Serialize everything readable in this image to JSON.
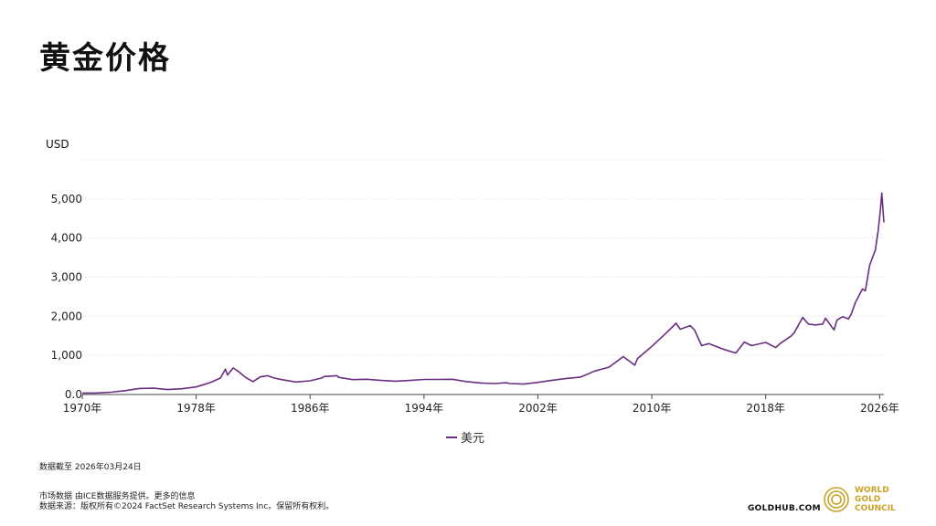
{
  "title": "黄金价格",
  "y_unit": "USD",
  "legend": {
    "label": "美元",
    "color": "#6b2d82"
  },
  "as_of": "数据截至 2026年03月24日",
  "source_line1": "市场数据 由ICE数据服务提供。更多的信息",
  "source_line2": "数据来源：版权所有©2024 FactSet Research Systems Inc。保留所有权利。",
  "site": "GOLDHUB.COM",
  "logo": {
    "line1": "WORLD",
    "line2": "GOLD",
    "line3": "COUNCIL",
    "color": "#c9a227",
    "icon": "wgc-rings-icon"
  },
  "chart_data": {
    "type": "line",
    "title": "黄金价格",
    "ylabel": "USD",
    "xlabel": "",
    "ylim": [
      0,
      5000
    ],
    "xlim": [
      1970,
      2026.3
    ],
    "y_ticks": [
      0,
      1000,
      2000,
      3000,
      4000,
      5000
    ],
    "y_tick_labels": [
      "0.0",
      "1,000",
      "2,000",
      "3,000",
      "4,000",
      "5,000"
    ],
    "x_ticks": [
      1970,
      1978,
      1986,
      1994,
      2002,
      2010,
      2018,
      2026
    ],
    "x_tick_labels": [
      "1970年",
      "1978年",
      "1986年",
      "1994年",
      "2002年",
      "2010年",
      "2018年",
      "2026年"
    ],
    "grid": true,
    "legend_position": "bottom-center",
    "series": [
      {
        "name": "美元",
        "color": "#6b2d82",
        "points": [
          [
            1970,
            35
          ],
          [
            1971,
            40
          ],
          [
            1972,
            58
          ],
          [
            1973,
            97
          ],
          [
            1974,
            154
          ],
          [
            1975,
            160
          ],
          [
            1976,
            125
          ],
          [
            1977,
            148
          ],
          [
            1978,
            193
          ],
          [
            1979,
            306
          ],
          [
            1979.7,
            420
          ],
          [
            1980.05,
            650
          ],
          [
            1980.2,
            500
          ],
          [
            1980.6,
            680
          ],
          [
            1981,
            580
          ],
          [
            1981.5,
            430
          ],
          [
            1982,
            330
          ],
          [
            1982.5,
            450
          ],
          [
            1983,
            480
          ],
          [
            1983.5,
            420
          ],
          [
            1984,
            380
          ],
          [
            1985,
            320
          ],
          [
            1986,
            350
          ],
          [
            1986.8,
            420
          ],
          [
            1987,
            460
          ],
          [
            1987.9,
            480
          ],
          [
            1988,
            440
          ],
          [
            1989,
            380
          ],
          [
            1990,
            390
          ],
          [
            1991,
            360
          ],
          [
            1992,
            340
          ],
          [
            1993,
            360
          ],
          [
            1994,
            385
          ],
          [
            1995,
            385
          ],
          [
            1996,
            390
          ],
          [
            1997,
            330
          ],
          [
            1998,
            295
          ],
          [
            1999,
            280
          ],
          [
            1999.8,
            300
          ],
          [
            2000,
            280
          ],
          [
            2001,
            265
          ],
          [
            2002,
            310
          ],
          [
            2003,
            365
          ],
          [
            2004,
            410
          ],
          [
            2005,
            445
          ],
          [
            2006,
            600
          ],
          [
            2007,
            700
          ],
          [
            2008,
            970
          ],
          [
            2008.8,
            750
          ],
          [
            2009,
            920
          ],
          [
            2010,
            1230
          ],
          [
            2011,
            1570
          ],
          [
            2011.7,
            1820
          ],
          [
            2012,
            1670
          ],
          [
            2012.7,
            1760
          ],
          [
            2013,
            1650
          ],
          [
            2013.5,
            1250
          ],
          [
            2014,
            1300
          ],
          [
            2015,
            1160
          ],
          [
            2015.9,
            1060
          ],
          [
            2016.5,
            1340
          ],
          [
            2017,
            1250
          ],
          [
            2018,
            1330
          ],
          [
            2018.7,
            1200
          ],
          [
            2019,
            1300
          ],
          [
            2019.8,
            1500
          ],
          [
            2020,
            1580
          ],
          [
            2020.6,
            1970
          ],
          [
            2021,
            1800
          ],
          [
            2021.5,
            1780
          ],
          [
            2022,
            1800
          ],
          [
            2022.2,
            1950
          ],
          [
            2022.8,
            1650
          ],
          [
            2023,
            1900
          ],
          [
            2023.4,
            1990
          ],
          [
            2023.8,
            1930
          ],
          [
            2024,
            2050
          ],
          [
            2024.3,
            2350
          ],
          [
            2024.8,
            2700
          ],
          [
            2025,
            2650
          ],
          [
            2025.3,
            3300
          ],
          [
            2025.7,
            3700
          ],
          [
            2025.9,
            4200
          ],
          [
            2026.05,
            4700
          ],
          [
            2026.15,
            5150
          ],
          [
            2026.3,
            4400
          ]
        ]
      }
    ]
  }
}
